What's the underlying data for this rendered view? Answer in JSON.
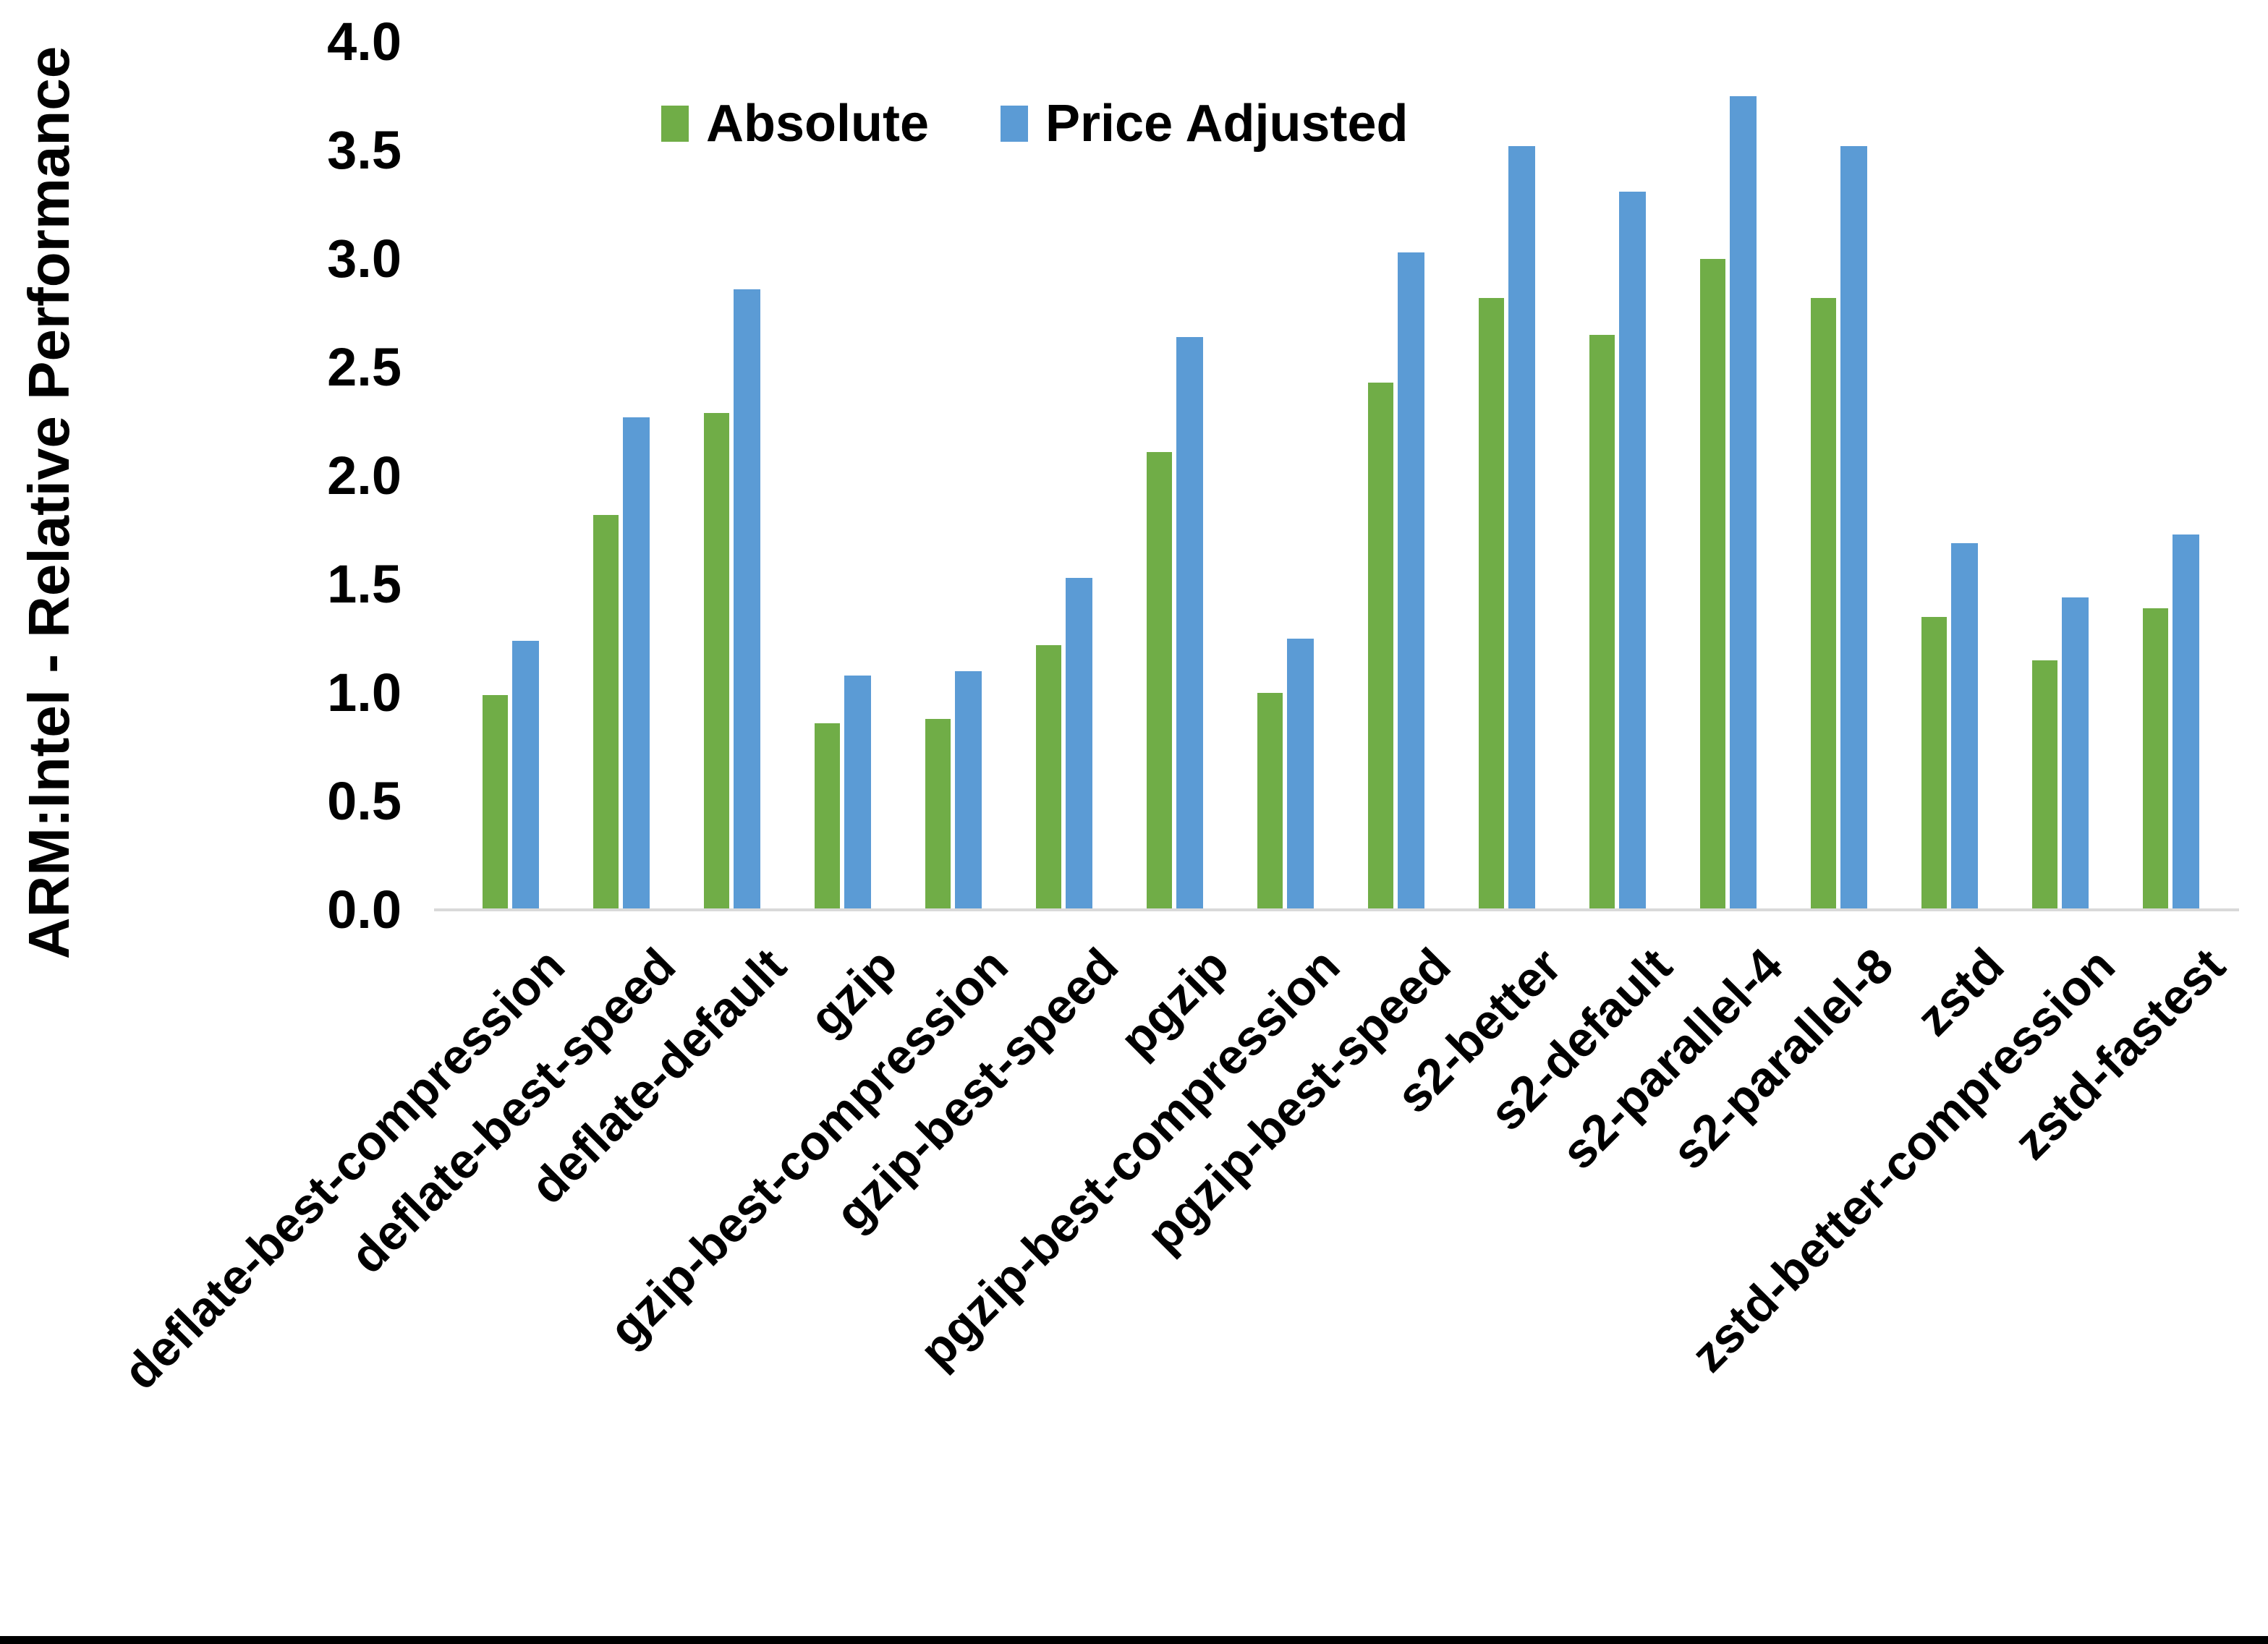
{
  "colors": {
    "absolute_series": "#70AD47",
    "price_adjusted_series": "#5B9BD5",
    "axis_line": "#D9D9D9",
    "bottom_border": "#000000",
    "background": "#FFFFFF",
    "text": "#000000"
  },
  "y_axis": {
    "title": "ARM:Intel - Relative Performance",
    "tick_labels": [
      "0.0",
      "0.5",
      "1.0",
      "1.5",
      "2.0",
      "2.5",
      "3.0",
      "3.5",
      "4.0"
    ],
    "min": 0,
    "max": 4
  },
  "legend": {
    "items": [
      {
        "label": "Absolute",
        "color": "#70AD47"
      },
      {
        "label": "Price Adjusted",
        "color": "#5B9BD5"
      }
    ],
    "position": "top-center"
  },
  "chart_data": {
    "type": "bar",
    "title": "",
    "xlabel": "",
    "ylabel": "ARM:Intel - Relative Performance",
    "ylim": [
      0,
      4
    ],
    "ytick_step": 0.5,
    "grid": false,
    "legend_position": "top",
    "categories": [
      "deflate-best-compression",
      "deflate-best-speed",
      "deflate-default",
      "gzip",
      "gzip-best-compression",
      "gzip-best-speed",
      "pgzip",
      "pgzip-best-compression",
      "pgzip-best-speed",
      "s2-better",
      "s2-default",
      "s2-parallel-4",
      "s2-parallel-8",
      "zstd",
      "zstd-better-compression",
      "zstd-fastest"
    ],
    "series": [
      {
        "name": "Absolute",
        "color": "#70AD47",
        "values": [
          0.99,
          1.82,
          2.29,
          0.86,
          0.88,
          1.22,
          2.11,
          1.0,
          2.43,
          2.82,
          2.65,
          3.0,
          2.82,
          1.35,
          1.15,
          1.39
        ]
      },
      {
        "name": "Price Adjusted",
        "color": "#5B9BD5",
        "values": [
          1.24,
          2.27,
          2.86,
          1.08,
          1.1,
          1.53,
          2.64,
          1.25,
          3.03,
          3.52,
          3.31,
          3.75,
          3.52,
          1.69,
          1.44,
          1.73
        ]
      }
    ]
  }
}
